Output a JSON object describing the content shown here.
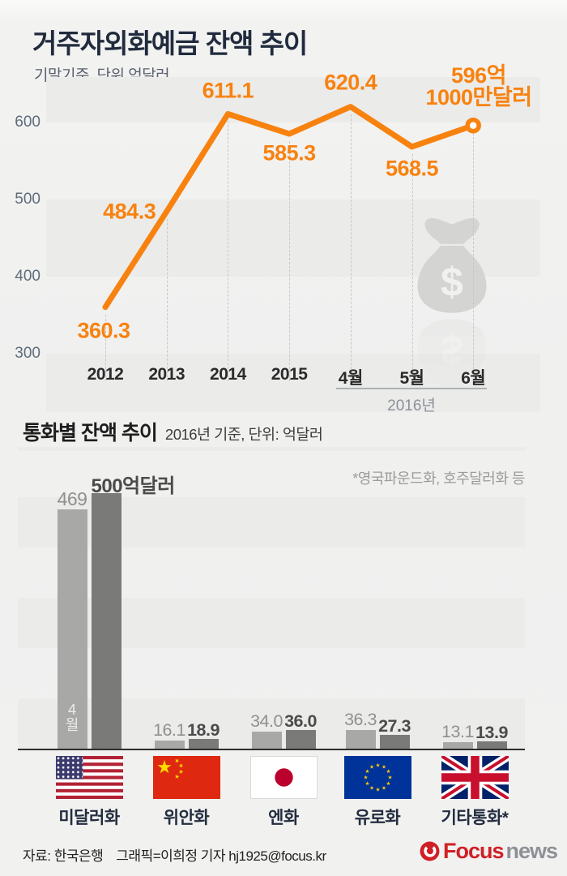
{
  "header": {
    "title": "거주자외화예금 잔액 추이",
    "subtitle": "기말기준, 단위 억달러"
  },
  "chart_data": [
    {
      "type": "line",
      "title": "거주자외화예금 잔액 추이",
      "subtitle": "기말기준, 단위 억달러",
      "categories": [
        "2012",
        "2013",
        "2014",
        "2015",
        "4월",
        "5월",
        "6월"
      ],
      "values": [
        360.3,
        484.3,
        611.1,
        585.3,
        620.4,
        568.5,
        596.1
      ],
      "point_labels": [
        "360.3",
        "484.3",
        "611.1",
        "585.3",
        "620.4",
        "568.5"
      ],
      "last_point_label_line1": "596억",
      "last_point_label_line2": "1000만달러",
      "yticks": [
        600,
        500,
        400,
        300
      ],
      "ylim": [
        300,
        660
      ],
      "x_period_label": "2016년",
      "x_period_span": [
        "4월",
        "6월"
      ],
      "line_color": "#f8820f",
      "grid": "striped-horizontal-bands",
      "legend": "none",
      "watermark_icon": "money-bag-icon"
    },
    {
      "type": "bar",
      "title": "통화별 잔액 추이",
      "subtitle": "2016년 기준, 단위: 억달러",
      "footnote": "*영국파운드화, 호주달러화 등",
      "categories": [
        "미달러화",
        "위안화",
        "엔화",
        "유로화",
        "기타통화*"
      ],
      "series": [
        {
          "name": "4월",
          "color": "#a8a8a7",
          "values": [
            469,
            16.1,
            34.0,
            36.3,
            13.1
          ],
          "value_labels": [
            "469",
            "16.1",
            "34.0",
            "36.3",
            "13.1"
          ]
        },
        {
          "name": "",
          "color": "#7a7a79",
          "values": [
            500,
            18.9,
            36.0,
            27.3,
            13.9
          ],
          "value_labels": [
            "500억달러",
            "18.9",
            "36.0",
            "27.3",
            "13.9"
          ]
        }
      ],
      "in_bar_label": "4월",
      "flags": [
        "us-flag-icon",
        "china-flag-icon",
        "japan-flag-icon",
        "eu-flag-icon",
        "uk-flag-icon"
      ],
      "ylim": [
        0,
        500
      ],
      "legend": "none"
    }
  ],
  "footer": {
    "source": "자료: 한국은행",
    "credit": "그래픽=이희정 기자 hj1925@focus.kr",
    "logo": {
      "word1": "Focus",
      "word2": "news",
      "color1": "#d11f26",
      "color2": "#8d9196"
    }
  },
  "colors": {
    "accent_orange": "#f8820f",
    "title_navy": "#212b3d",
    "bar_light_gray": "#a8a8a7",
    "bar_dark_gray": "#7a7a79",
    "background": "#f1f1f0",
    "stripe_band": "#ebebea"
  }
}
